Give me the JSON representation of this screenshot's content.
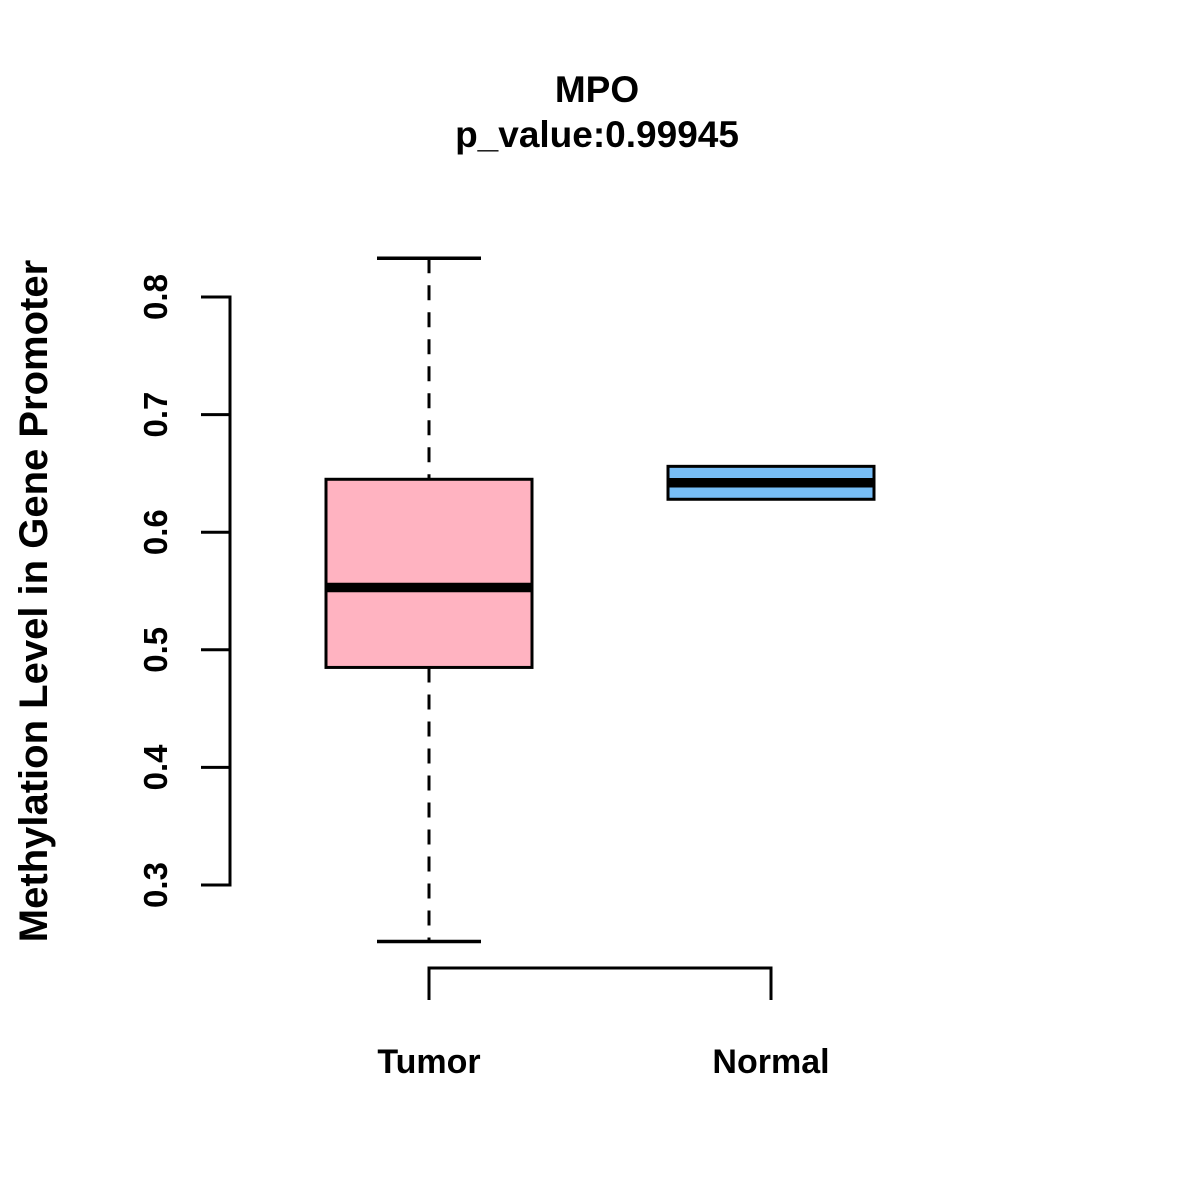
{
  "page": {
    "background": "#FFFFFF",
    "text_color": "#000000"
  },
  "chart_data": {
    "type": "boxplot",
    "title": "MPO",
    "subtitle": "p_value:0.99945",
    "ylabel": "Methylation Level in Gene Promoter",
    "xlabel": "",
    "categories": [
      "Tumor",
      "Normal"
    ],
    "ytick_labels": [
      "0.3",
      "0.4",
      "0.5",
      "0.6",
      "0.7",
      "0.8"
    ],
    "ylim": [
      0.25,
      0.845
    ],
    "grid": false,
    "legend": "none",
    "axis_color": "#000000",
    "median_color": "#000000",
    "series": [
      {
        "name": "Tumor",
        "fill": "#FFB3C1",
        "whisker_low": 0.252,
        "q1": 0.485,
        "median": 0.553,
        "q3": 0.645,
        "whisker_high": 0.833
      },
      {
        "name": "Normal",
        "fill": "#77BDF6",
        "whisker_low": null,
        "q1": 0.628,
        "median": 0.642,
        "q3": 0.656,
        "whisker_high": null
      }
    ]
  }
}
